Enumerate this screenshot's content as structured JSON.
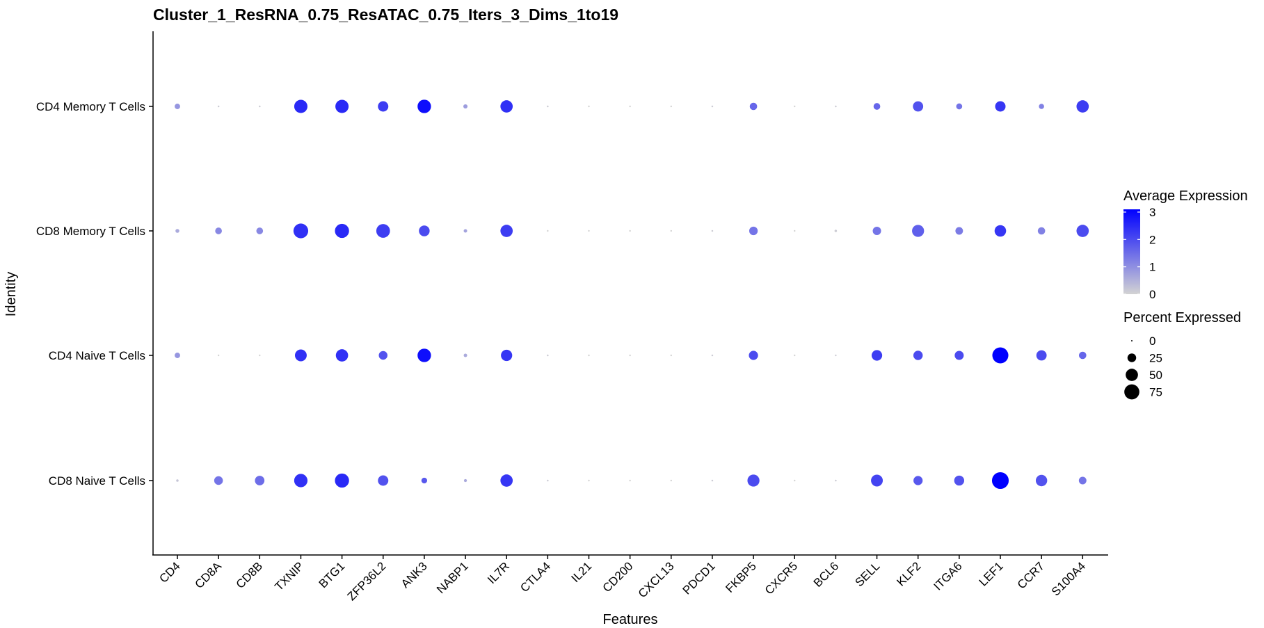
{
  "chart_data": {
    "type": "dotplot",
    "title": "Cluster_1_ResRNA_0.75_ResATAC_0.75_Iters_3_Dims_1to19",
    "xlabel": "Features",
    "ylabel": "Identity",
    "features": [
      "CD4",
      "CD8A",
      "CD8B",
      "TXNIP",
      "BTG1",
      "ZFP36L2",
      "ANK3",
      "NABP1",
      "IL7R",
      "CTLA4",
      "IL21",
      "CD200",
      "CXCL13",
      "PDCD1",
      "FKBP5",
      "CXCR5",
      "BCL6",
      "SELL",
      "KLF2",
      "ITGA6",
      "LEF1",
      "CCR7",
      "S100A4"
    ],
    "identities": [
      "CD4 Memory T Cells",
      "CD8 Memory T Cells",
      "CD4 Naive T Cells",
      "CD8 Naive T Cells"
    ],
    "avg_expression": [
      [
        0.9,
        0.1,
        0.1,
        2.5,
        2.5,
        2.2,
        2.9,
        0.8,
        2.4,
        0.1,
        0.0,
        0.0,
        0.0,
        0.1,
        1.6,
        0.0,
        0.1,
        1.6,
        1.9,
        1.4,
        2.3,
        1.2,
        2.2
      ],
      [
        0.6,
        1.1,
        1.1,
        2.4,
        2.5,
        2.2,
        2.0,
        0.7,
        2.2,
        0.0,
        0.0,
        0.0,
        0.0,
        0.1,
        1.4,
        0.0,
        0.1,
        1.4,
        1.7,
        1.3,
        2.3,
        1.2,
        2.0
      ],
      [
        0.9,
        0.0,
        0.0,
        2.4,
        2.4,
        1.9,
        2.9,
        0.6,
        2.3,
        0.1,
        0.0,
        0.0,
        0.0,
        0.1,
        2.0,
        0.0,
        0.1,
        2.2,
        2.0,
        2.0,
        3.1,
        2.0,
        1.6
      ],
      [
        0.2,
        1.4,
        1.5,
        2.4,
        2.5,
        1.9,
        1.8,
        0.6,
        2.3,
        0.1,
        0.0,
        0.0,
        0.0,
        0.1,
        2.0,
        0.0,
        0.1,
        2.1,
        1.8,
        1.9,
        3.1,
        1.9,
        1.4
      ]
    ],
    "pct_expressed": [
      [
        10,
        1,
        1,
        58,
        58,
        36,
        60,
        6,
        50,
        1,
        0.5,
        0.5,
        0.5,
        1,
        18,
        0.5,
        1,
        15,
        35,
        12,
        36,
        9,
        50
      ],
      [
        5,
        15,
        15,
        72,
        66,
        62,
        38,
        4,
        50,
        0.5,
        0.5,
        0.5,
        0.5,
        1,
        24,
        0.5,
        2,
        23,
        48,
        19,
        44,
        18,
        50
      ],
      [
        10,
        0.5,
        0.5,
        46,
        50,
        25,
        60,
        4,
        42,
        1,
        0.5,
        0.5,
        0.5,
        1,
        28,
        0.5,
        0.5,
        37,
        29,
        27,
        85,
        35,
        18
      ],
      [
        2,
        25,
        30,
        59,
        66,
        36,
        11,
        3,
        50,
        1,
        0.5,
        0.5,
        0.5,
        1,
        48,
        0.5,
        1,
        46,
        28,
        33,
        93,
        43,
        19
      ]
    ],
    "color_legend": {
      "title": "Average Expression",
      "ticks": [
        0,
        1,
        2,
        3
      ],
      "range": [
        0,
        3.1
      ],
      "low_color": "#d3d3d3",
      "high_color": "#0000ff"
    },
    "size_legend": {
      "title": "Percent Expressed",
      "ticks": [
        0,
        25,
        50,
        75
      ]
    },
    "legend_position": "right",
    "grid": false
  }
}
